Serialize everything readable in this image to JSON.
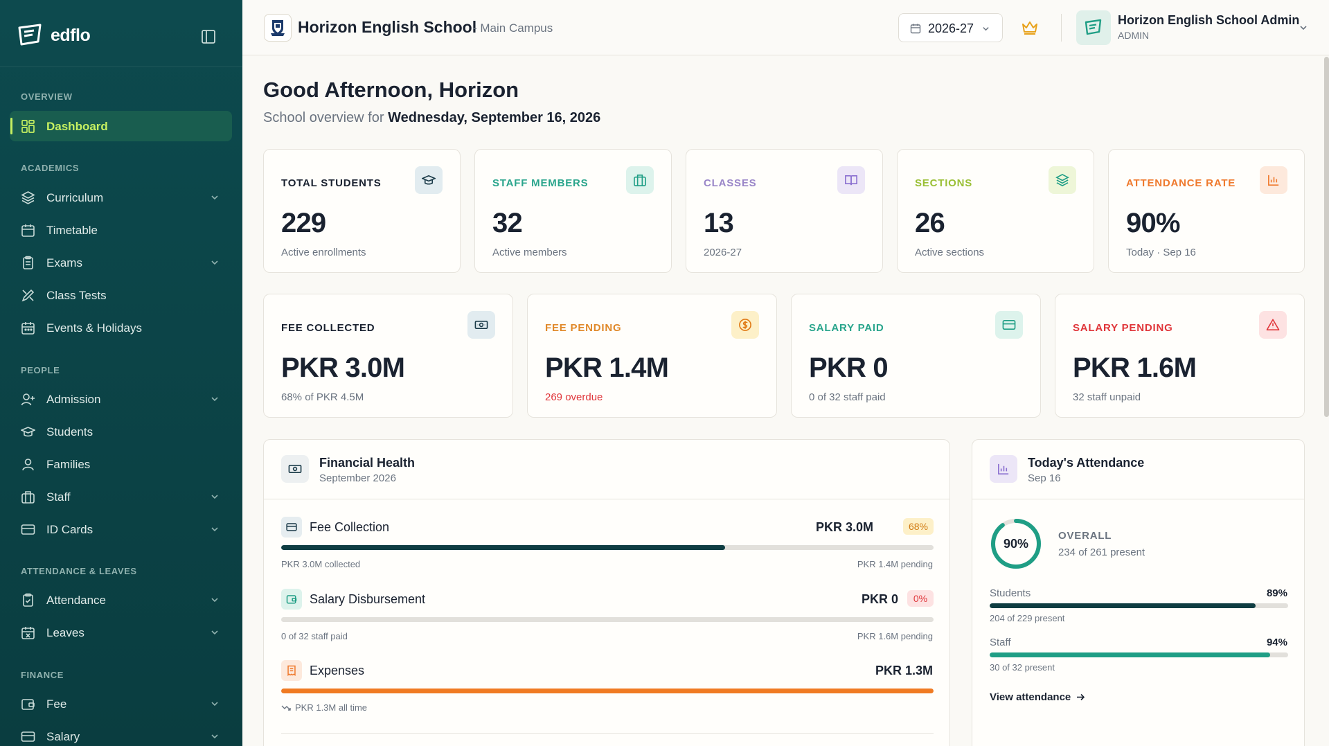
{
  "app": {
    "name": "edflo"
  },
  "sidebar": {
    "sections": {
      "overview": "OVERVIEW",
      "academics": "ACADEMICS",
      "people": "PEOPLE",
      "attendance_leaves": "ATTENDANCE & LEAVES",
      "finance": "FINANCE"
    },
    "items": {
      "dashboard": "Dashboard",
      "curriculum": "Curriculum",
      "timetable": "Timetable",
      "exams": "Exams",
      "class_tests": "Class Tests",
      "events": "Events & Holidays",
      "admission": "Admission",
      "students": "Students",
      "families": "Families",
      "staff": "Staff",
      "id_cards": "ID Cards",
      "attendance": "Attendance",
      "leaves": "Leaves",
      "fee": "Fee",
      "salary": "Salary"
    }
  },
  "header": {
    "school_name": "Horizon English School",
    "campus": "- Main Campus",
    "academic_year": "2026-27",
    "user_name": "Horizon English School Admin",
    "user_role": "ADMIN"
  },
  "greeting": {
    "title": "Good Afternoon, Horizon",
    "subtitle_prefix": "School overview for",
    "date": "Wednesday, September 16, 2026"
  },
  "stats": {
    "total_students": {
      "title": "TOTAL STUDENTS",
      "value": "229",
      "note": "Active enrollments"
    },
    "staff_members": {
      "title": "STAFF MEMBERS",
      "value": "32",
      "note": "Active members"
    },
    "classes": {
      "title": "CLASSES",
      "value": "13",
      "note": "2026-27"
    },
    "sections": {
      "title": "SECTIONS",
      "value": "26",
      "note": "Active sections"
    },
    "attendance_rate": {
      "title": "ATTENDANCE RATE",
      "value": "90%",
      "note": "Today · Sep 16"
    }
  },
  "finance_stats": {
    "fee_collected": {
      "title": "FEE COLLECTED",
      "value": "PKR 3.0M",
      "note": "68% of PKR 4.5M"
    },
    "fee_pending": {
      "title": "FEE PENDING",
      "value": "PKR 1.4M",
      "note": "269 overdue"
    },
    "salary_paid": {
      "title": "SALARY PAID",
      "value": "PKR 0",
      "note": "0 of 32 staff paid"
    },
    "salary_pending": {
      "title": "SALARY PENDING",
      "value": "PKR 1.6M",
      "note": "32 staff unpaid"
    }
  },
  "financial_health": {
    "title": "Financial Health",
    "subtitle": "September 2026",
    "fee_collection": {
      "label": "Fee Collection",
      "amount": "PKR 3.0M",
      "badge": "68%",
      "progress": 0.68,
      "left_note": "PKR 3.0M collected",
      "right_note": "PKR 1.4M pending"
    },
    "salary_disbursement": {
      "label": "Salary Disbursement",
      "amount": "PKR 0",
      "badge": "0%",
      "progress": 0.0,
      "left_note": "0 of 32 staff paid",
      "right_note": "PKR 1.6M pending"
    },
    "expenses": {
      "label": "Expenses",
      "amount": "PKR 1.3M",
      "progress": 1.0,
      "left_note": "PKR 1.3M all time"
    }
  },
  "todays_attendance": {
    "title": "Today's Attendance",
    "subtitle": "Sep 16",
    "ring_value": "90%",
    "ring_progress": 0.9,
    "overall_label": "OVERALL",
    "overall_note": "234 of 261 present",
    "students": {
      "label": "Students",
      "pct": "89%",
      "progress": 0.89,
      "note": "204 of 229 present"
    },
    "staff": {
      "label": "Staff",
      "pct": "94%",
      "progress": 0.94,
      "note": "30 of 32 present"
    },
    "link": "View attendance"
  },
  "colors": {
    "sidebar_bg": "#0d4a4e",
    "accent_lime": "#c6f061",
    "dark_bar": "#0f3d42",
    "teal": "#1f9e85",
    "orange": "#f07a22",
    "red": "#e0363a"
  }
}
